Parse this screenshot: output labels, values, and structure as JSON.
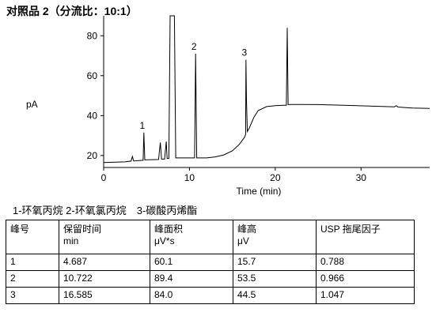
{
  "title": "对照品 2（分流比：10:1）",
  "chart_data": {
    "type": "line",
    "xlabel": "Time (min)",
    "ylabel": "pA",
    "xlim": [
      0,
      38
    ],
    "ylim": [
      14,
      90
    ],
    "x_ticks": [
      0,
      10,
      20,
      30
    ],
    "y_ticks": [
      20,
      40,
      60,
      80
    ],
    "grid": false,
    "series": [
      {
        "points": [
          [
            0,
            16.5
          ],
          [
            2.5,
            16.8
          ],
          [
            3.2,
            17.2
          ],
          [
            3.35,
            19.5
          ],
          [
            3.5,
            17.3
          ],
          [
            4.6,
            17.6
          ],
          [
            4.687,
            31.5
          ],
          [
            4.8,
            17.8
          ],
          [
            6.4,
            18.0
          ],
          [
            6.6,
            26.5
          ],
          [
            6.75,
            18.2
          ],
          [
            7.1,
            18.2
          ],
          [
            7.3,
            27
          ],
          [
            7.4,
            18.5
          ],
          [
            7.6,
            18.5
          ],
          [
            7.75,
            90
          ],
          [
            8.25,
            90
          ],
          [
            8.4,
            18.8
          ],
          [
            10.6,
            18.8
          ],
          [
            10.722,
            71
          ],
          [
            10.85,
            18.8
          ],
          [
            12,
            18.8
          ],
          [
            13,
            19.3
          ],
          [
            14,
            20.3
          ],
          [
            15,
            22.3
          ],
          [
            15.8,
            25.5
          ],
          [
            16.4,
            29
          ],
          [
            16.55,
            30.5
          ],
          [
            16.585,
            68
          ],
          [
            16.65,
            47.5
          ],
          [
            16.75,
            32
          ],
          [
            17,
            34
          ],
          [
            17.5,
            39
          ],
          [
            18,
            42.5
          ],
          [
            19,
            44.5
          ],
          [
            20,
            45.0
          ],
          [
            21,
            45.2
          ],
          [
            21.3,
            45.2
          ],
          [
            21.4,
            84
          ],
          [
            21.5,
            45.5
          ],
          [
            22,
            45.6
          ],
          [
            25,
            45.5
          ],
          [
            28,
            45.2
          ],
          [
            31,
            44.8
          ],
          [
            33.9,
            44.4
          ],
          [
            34.1,
            45.0
          ],
          [
            34.3,
            44.3
          ],
          [
            36,
            43.8
          ],
          [
            38,
            43.6
          ]
        ]
      }
    ],
    "annotations": [
      {
        "text": "1",
        "x": 4.687,
        "y": 31.5
      },
      {
        "text": "2",
        "x": 10.722,
        "y": 71
      },
      {
        "text": "3",
        "x": 16.585,
        "y": 68
      }
    ]
  },
  "legend_text": "1-环氧丙烷 2-环氧氯丙烷　3-碳酸丙烯酯",
  "table": {
    "headers": [
      {
        "main": "峰号",
        "sub": ""
      },
      {
        "main": "保留时间",
        "sub": "min"
      },
      {
        "main": "峰面积",
        "sub": "μV*s"
      },
      {
        "main": "峰高",
        "sub": "μV"
      },
      {
        "main": "USP 拖尾因子",
        "sub": ""
      }
    ],
    "rows": [
      [
        "1",
        "4.687",
        "60.1",
        "15.7",
        "0.788"
      ],
      [
        "2",
        "10.722",
        "89.4",
        "53.5",
        "0.966"
      ],
      [
        "3",
        "16.585",
        "84.0",
        "44.5",
        "1.047"
      ]
    ]
  }
}
